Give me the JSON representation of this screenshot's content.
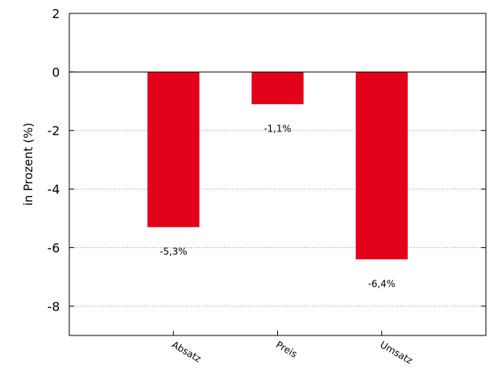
{
  "chart_data": {
    "type": "bar",
    "title": "",
    "xlabel": "",
    "ylabel": "in Prozent (%)",
    "categories": [
      "Absatz",
      "Preis",
      "Umsatz"
    ],
    "values": [
      -5.3,
      -1.1,
      -6.4
    ],
    "data_labels": [
      "-5,3%",
      "-1,1%",
      "-6,4%"
    ],
    "ylim": [
      -9,
      2
    ],
    "yticks": [
      2,
      0,
      -2,
      -4,
      -6,
      -8
    ],
    "ytick_labels": [
      "2",
      "0",
      "-2",
      "-4",
      "-6",
      "-8"
    ],
    "grid": "horizontal dotted",
    "bar_color": "#e2001a",
    "zero_line": true
  }
}
